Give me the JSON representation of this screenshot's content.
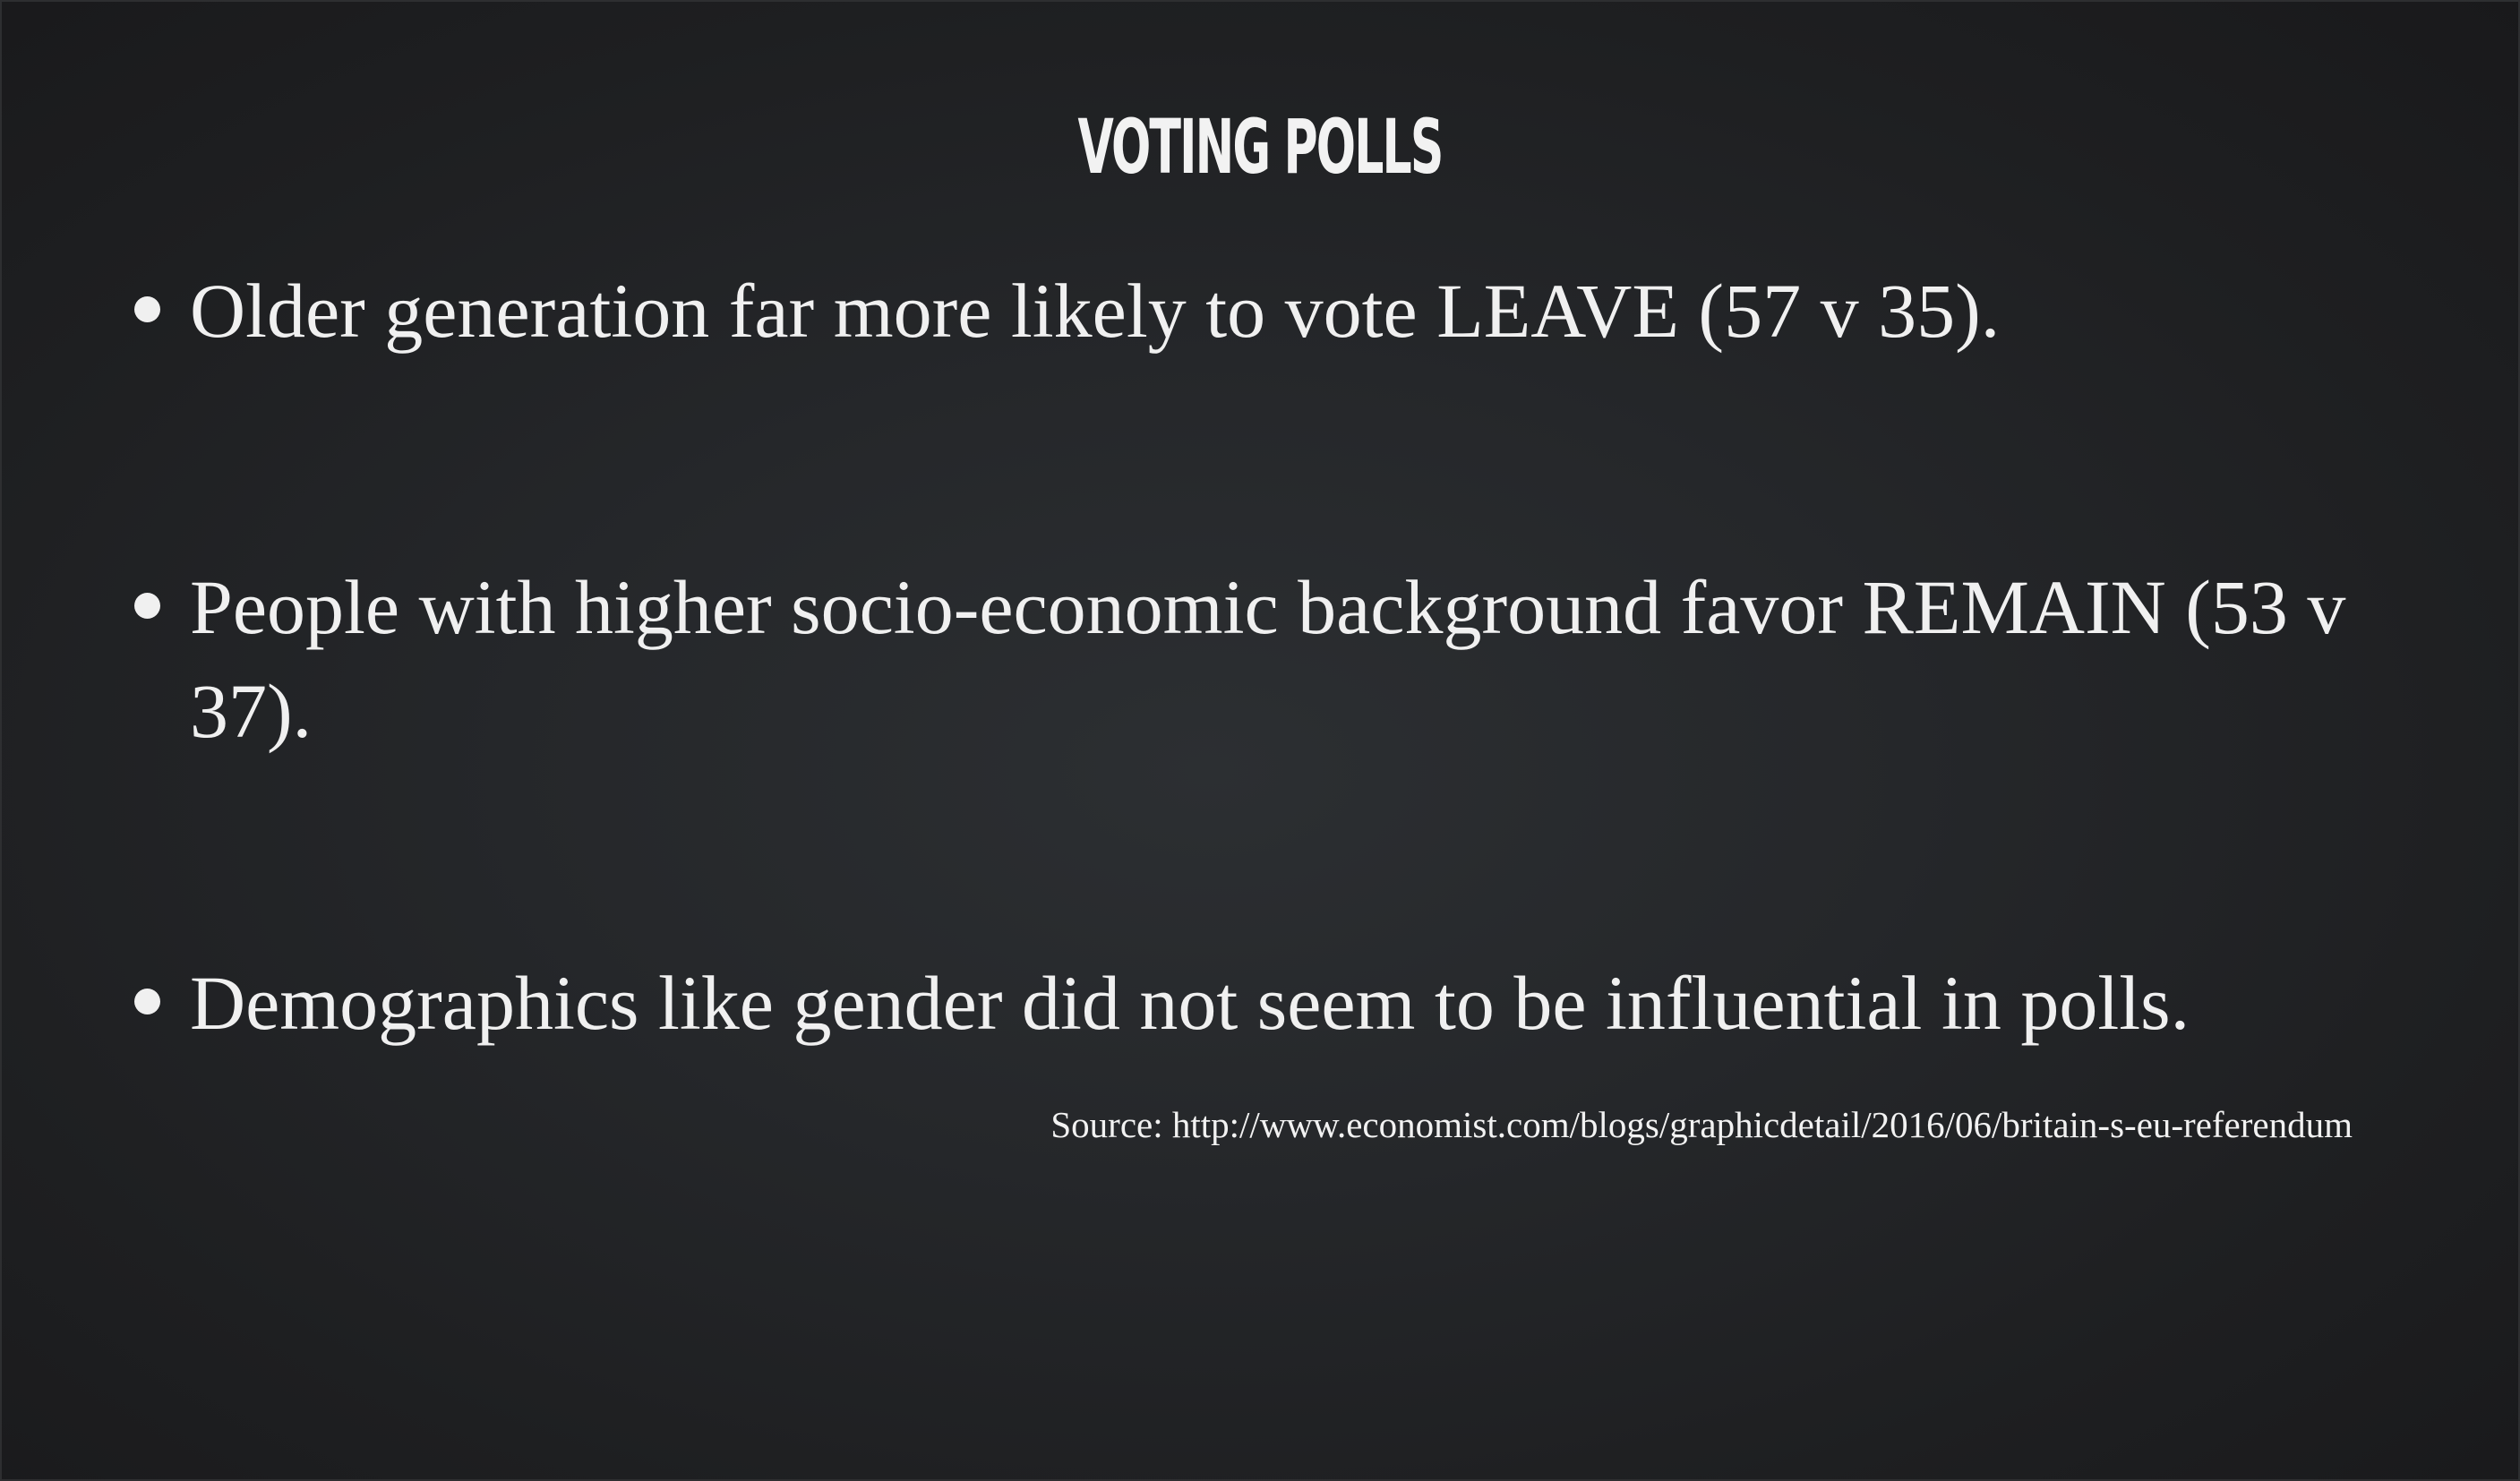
{
  "slide": {
    "title": "VOTING POLLS",
    "bullets": [
      {
        "text": "Older generation far more likely to vote LEAVE (57 v 35)."
      },
      {
        "text": "People with higher socio-economic background favor REMAIN (53 v 37)."
      },
      {
        "text": "Demographics like gender did not seem to be influential in polls."
      }
    ],
    "source": "Source: http://www.economist.com/blogs/graphicdetail/2016/06/britain-s-eu-referendum"
  },
  "colors": {
    "background": "#222426",
    "text": "#f0f0f0"
  }
}
